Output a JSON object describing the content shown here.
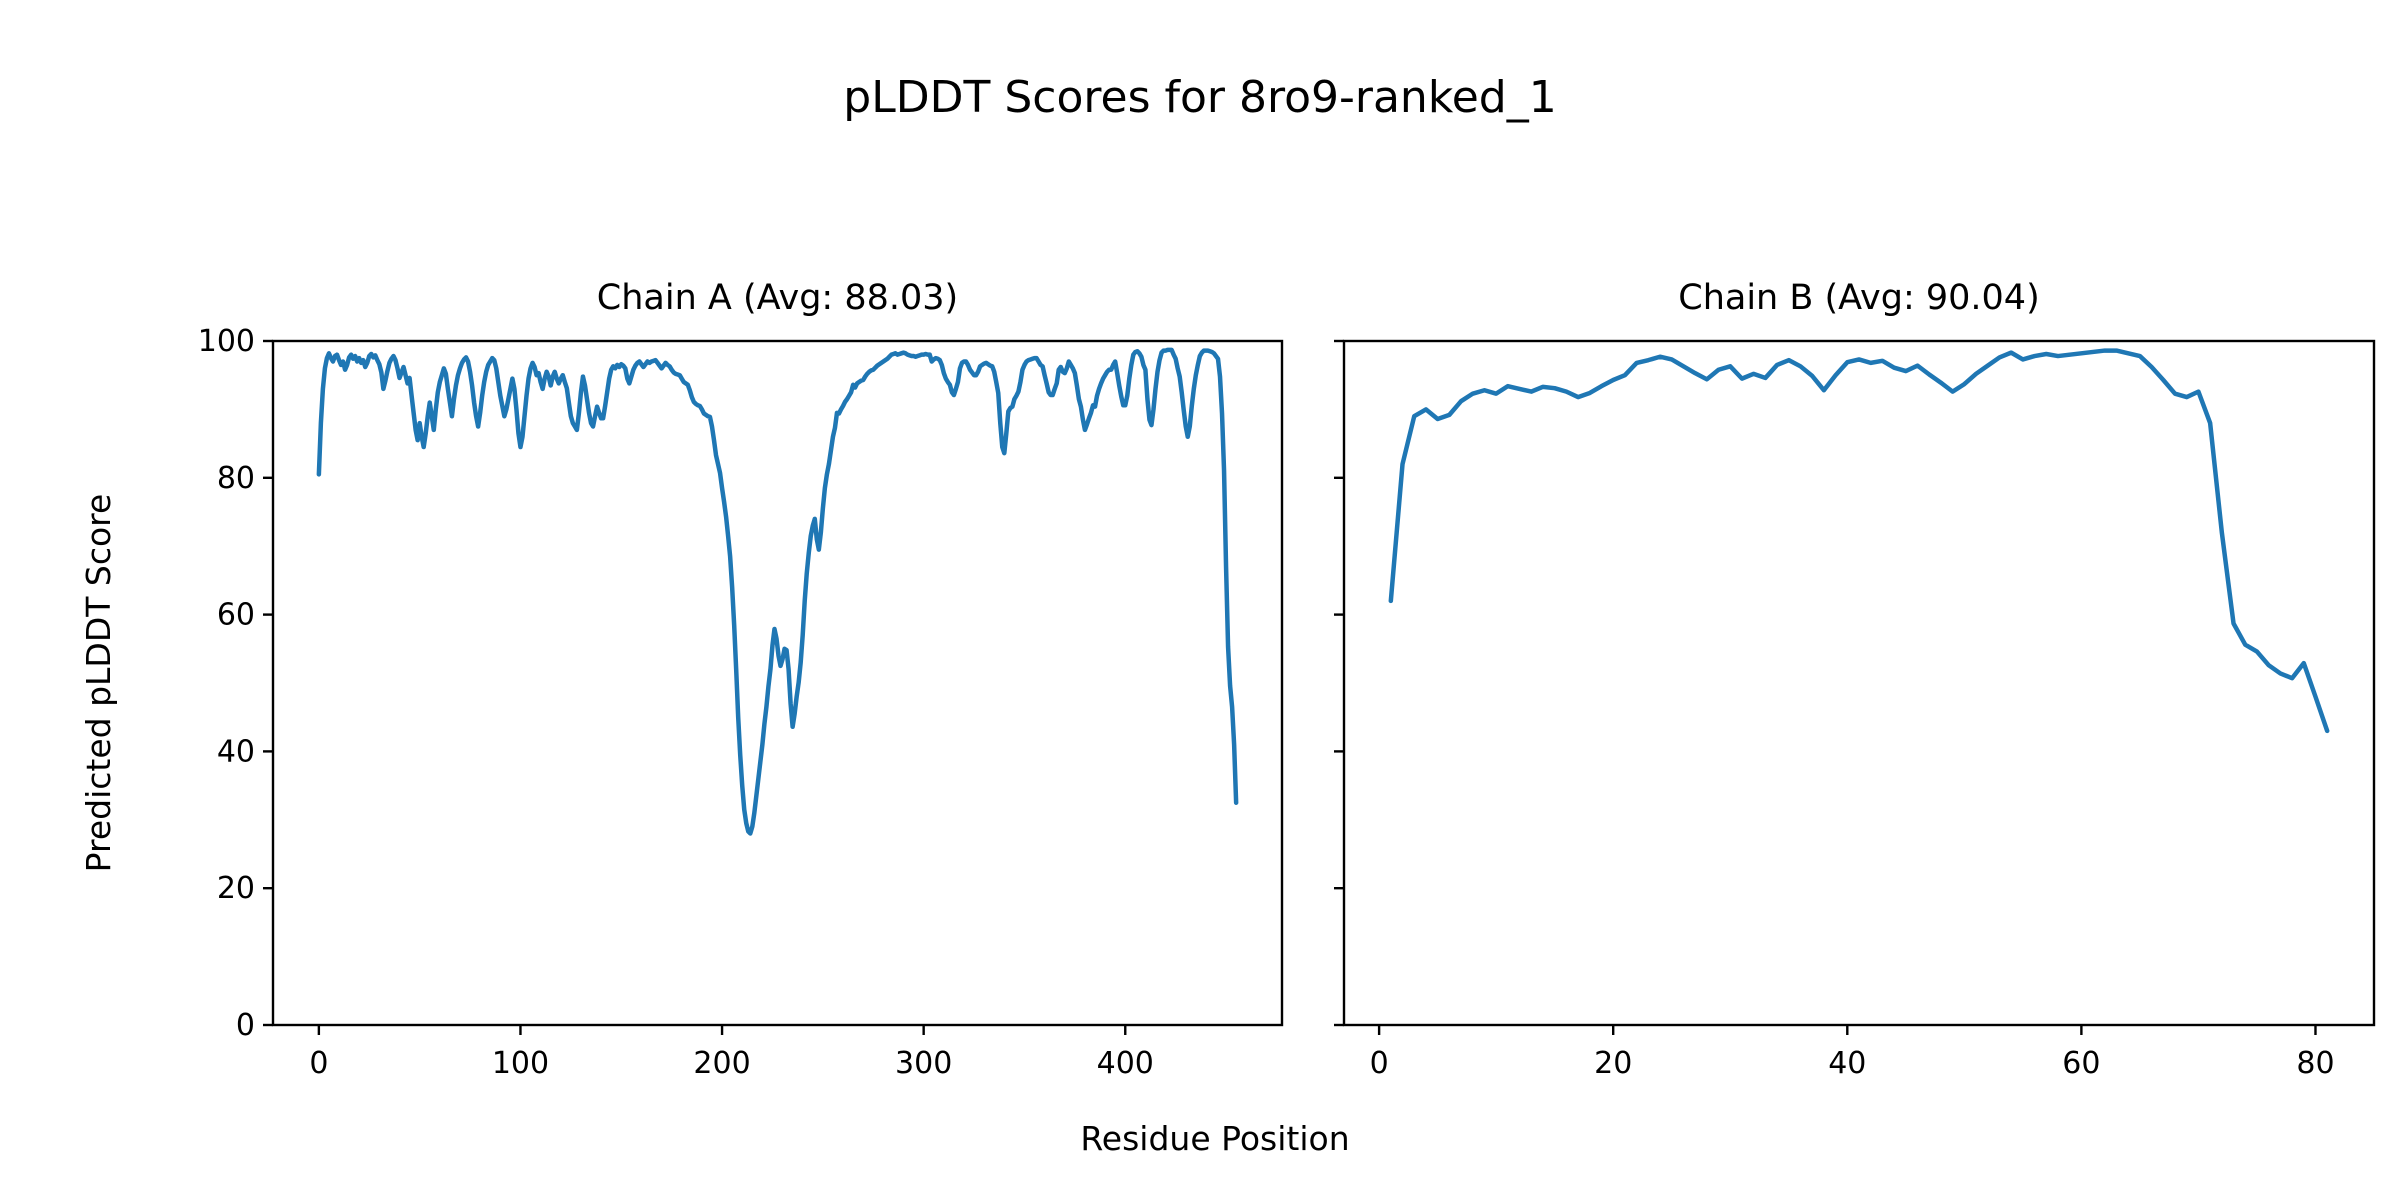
{
  "figure": {
    "title": "pLDDT Scores for 8ro9-ranked_1",
    "background": "#ffffff"
  },
  "labels": {
    "xlabel": "Residue Position",
    "ylabel": "Predicted pLDDT Score"
  },
  "style": {
    "line_color": "#1f77b4",
    "spine_color": "#000000",
    "text_color": "#000000"
  },
  "chart_data": [
    {
      "type": "line",
      "title": "Chain A (Avg: 88.03)",
      "chain": "A",
      "average": 88.03,
      "xlabel": "Residue Position",
      "ylabel": "Predicted pLDDT Score",
      "xlim": [
        -22.75,
        477.75
      ],
      "ylim": [
        0,
        100
      ],
      "x_ticks": [
        0,
        100,
        200,
        300,
        400
      ],
      "y_ticks": [
        0,
        20,
        40,
        60,
        80,
        100
      ],
      "y_tick_labels": true,
      "grid": false,
      "legend": "none",
      "line_color": "#1f77b4",
      "x_start": 0,
      "values": [
        80.5,
        88.0,
        93.0,
        96.0,
        97.5,
        98.2,
        97.5,
        97.0,
        97.8,
        98.0,
        97.2,
        96.5,
        97.0,
        95.8,
        96.5,
        97.6,
        98.0,
        97.4,
        97.8,
        97.0,
        97.5,
        96.8,
        97.2,
        96.2,
        96.8,
        97.8,
        98.1,
        97.6,
        97.9,
        97.2,
        96.6,
        95.4,
        93.0,
        94.2,
        95.6,
        96.8,
        97.4,
        97.8,
        97.2,
        96.0,
        94.6,
        95.4,
        96.2,
        95.0,
        93.8,
        94.6,
        92.0,
        89.5,
        87.0,
        85.5,
        88.0,
        86.0,
        84.5,
        86.5,
        89.0,
        91.0,
        89.0,
        87.0,
        90.0,
        92.5,
        94.0,
        95.0,
        96.0,
        95.2,
        93.0,
        91.0,
        89.0,
        91.5,
        93.5,
        95.0,
        96.0,
        96.8,
        97.3,
        97.6,
        97.0,
        95.5,
        93.5,
        91.0,
        89.0,
        87.5,
        89.5,
        92.0,
        94.0,
        95.5,
        96.5,
        97.0,
        97.5,
        97.2,
        96.0,
        94.0,
        92.0,
        90.5,
        89.0,
        90.0,
        91.5,
        93.0,
        94.5,
        93.0,
        90.0,
        86.5,
        84.5,
        86.0,
        89.0,
        92.0,
        94.5,
        96.0,
        96.8,
        96.2,
        95.0,
        95.3,
        94.0,
        93.0,
        94.5,
        95.5,
        94.8,
        93.5,
        94.8,
        95.5,
        94.5,
        93.8,
        94.5,
        95.0,
        94.0,
        93.1,
        91.0,
        89.0,
        88.0,
        87.5,
        87.0,
        89.5,
        92.5,
        94.8,
        93.5,
        91.5,
        89.5,
        88.0,
        87.5,
        89.0,
        90.4,
        89.5,
        88.7,
        88.7,
        90.5,
        92.5,
        94.5,
        95.8,
        96.3,
        96.0,
        96.5,
        96.2,
        96.6,
        96.4,
        96.0,
        94.5,
        93.8,
        94.8,
        95.8,
        96.4,
        96.8,
        97.0,
        96.6,
        96.2,
        96.6,
        97.0,
        96.8,
        97.0,
        97.1,
        97.2,
        96.8,
        96.4,
        96.0,
        96.4,
        96.8,
        96.5,
        96.3,
        95.8,
        95.4,
        95.2,
        95.1,
        95.0,
        94.5,
        94.0,
        93.8,
        93.6,
        92.8,
        91.8,
        91.1,
        90.8,
        90.6,
        90.5,
        90.0,
        89.4,
        89.2,
        89.0,
        88.9,
        87.5,
        85.5,
        83.3,
        82.0,
        80.7,
        78.5,
        76.5,
        74.3,
        71.5,
        68.5,
        64.0,
        58.5,
        52.0,
        45.0,
        39.5,
        35.0,
        31.5,
        29.5,
        28.3,
        28.0,
        29.0,
        31.0,
        33.5,
        36.0,
        38.5,
        41.0,
        44.0,
        46.5,
        49.5,
        52.0,
        55.5,
        57.9,
        56.5,
        54.0,
        52.5,
        53.5,
        55.0,
        54.8,
        52.0,
        47.0,
        43.6,
        45.5,
        48.0,
        50.1,
        53.0,
        57.0,
        62.0,
        66.0,
        69.0,
        71.5,
        73.0,
        74.0,
        71.0,
        69.5,
        72.0,
        75.5,
        78.5,
        80.5,
        82.0,
        84.0,
        86.0,
        87.3,
        89.5,
        89.4,
        90.0,
        90.5,
        91.1,
        91.5,
        92.0,
        92.5,
        93.6,
        93.2,
        93.8,
        94.0,
        94.2,
        94.3,
        94.8,
        95.2,
        95.5,
        95.7,
        95.8,
        96.1,
        96.4,
        96.6,
        96.8,
        97.0,
        97.2,
        97.4,
        97.7,
        98.0,
        98.1,
        98.2,
        98.0,
        98.1,
        98.2,
        98.3,
        98.2,
        98.0,
        97.9,
        97.8,
        97.8,
        97.7,
        97.8,
        97.9,
        98.0,
        98.0,
        98.1,
        98.0,
        98.0,
        97.0,
        97.3,
        97.5,
        97.4,
        97.2,
        96.5,
        95.3,
        94.5,
        94.0,
        93.6,
        92.5,
        92.1,
        93.0,
        94.0,
        96.0,
        96.8,
        97.0,
        97.0,
        96.5,
        95.8,
        95.4,
        95.0,
        95.0,
        95.5,
        96.3,
        96.5,
        96.7,
        96.8,
        96.6,
        96.4,
        96.3,
        95.5,
        94.0,
        92.4,
        88.0,
        84.5,
        83.6,
        86.5,
        89.7,
        90.2,
        90.4,
        91.5,
        92.0,
        92.6,
        94.0,
        95.8,
        96.5,
        97.0,
        97.2,
        97.3,
        97.4,
        97.5,
        97.5,
        97.0,
        96.5,
        96.3,
        95.0,
        93.8,
        92.5,
        92.1,
        92.1,
        93.0,
        93.8,
        95.8,
        96.2,
        95.5,
        95.3,
        96.0,
        97.0,
        96.5,
        96.0,
        95.3,
        93.5,
        91.5,
        90.4,
        88.5,
        87.0,
        87.8,
        88.7,
        89.5,
        90.6,
        90.4,
        92.0,
        93.0,
        93.8,
        94.5,
        95.0,
        95.5,
        95.8,
        95.8,
        96.5,
        97.0,
        95.3,
        93.5,
        91.9,
        90.6,
        90.6,
        92.0,
        94.5,
        96.5,
        98.0,
        98.4,
        98.5,
        98.2,
        97.7,
        96.5,
        95.8,
        91.5,
        88.5,
        87.7,
        90.0,
        93.0,
        95.5,
        97.2,
        98.3,
        98.6,
        98.6,
        98.7,
        98.7,
        98.7,
        98.0,
        97.4,
        96.0,
        94.8,
        92.5,
        89.9,
        87.5,
        86.0,
        87.5,
        90.5,
        93.0,
        95.0,
        96.5,
        97.8,
        98.3,
        98.6,
        98.6,
        98.6,
        98.5,
        98.4,
        98.2,
        97.8,
        97.4,
        94.8,
        89.4,
        81.1,
        67.0,
        55.3,
        49.6,
        46.5,
        41.0,
        32.5
      ]
    },
    {
      "type": "line",
      "title": "Chain B (Avg: 90.04)",
      "chain": "B",
      "average": 90.04,
      "xlabel": "Residue Position",
      "ylabel": "Predicted pLDDT Score",
      "xlim": [
        -3,
        85
      ],
      "ylim": [
        0,
        100
      ],
      "x_ticks": [
        0,
        20,
        40,
        60,
        80
      ],
      "y_ticks": [
        0,
        20,
        40,
        60,
        80,
        100
      ],
      "y_tick_labels": false,
      "grid": false,
      "legend": "none",
      "line_color": "#1f77b4",
      "x_start": 1,
      "values": [
        62.0,
        82.0,
        89.0,
        90.0,
        88.6,
        89.2,
        91.2,
        92.3,
        92.8,
        92.3,
        93.4,
        93.0,
        92.6,
        93.3,
        93.1,
        92.6,
        91.8,
        92.4,
        93.4,
        94.3,
        95.0,
        96.8,
        97.2,
        97.7,
        97.3,
        96.3,
        95.3,
        94.4,
        95.8,
        96.3,
        94.5,
        95.2,
        94.6,
        96.5,
        97.2,
        96.3,
        94.9,
        92.8,
        95.0,
        96.9,
        97.3,
        96.8,
        97.1,
        96.1,
        95.6,
        96.4,
        95.1,
        93.9,
        92.6,
        93.7,
        95.2,
        96.4,
        97.6,
        98.3,
        97.3,
        97.8,
        98.1,
        97.8,
        98.0,
        98.2,
        98.4,
        98.6,
        98.6,
        98.2,
        97.8,
        96.2,
        94.3,
        92.3,
        91.8,
        92.6,
        88.0,
        72.0,
        58.7,
        55.6,
        54.6,
        52.6,
        51.4,
        50.7,
        52.9,
        48.0,
        43.0
      ]
    }
  ]
}
